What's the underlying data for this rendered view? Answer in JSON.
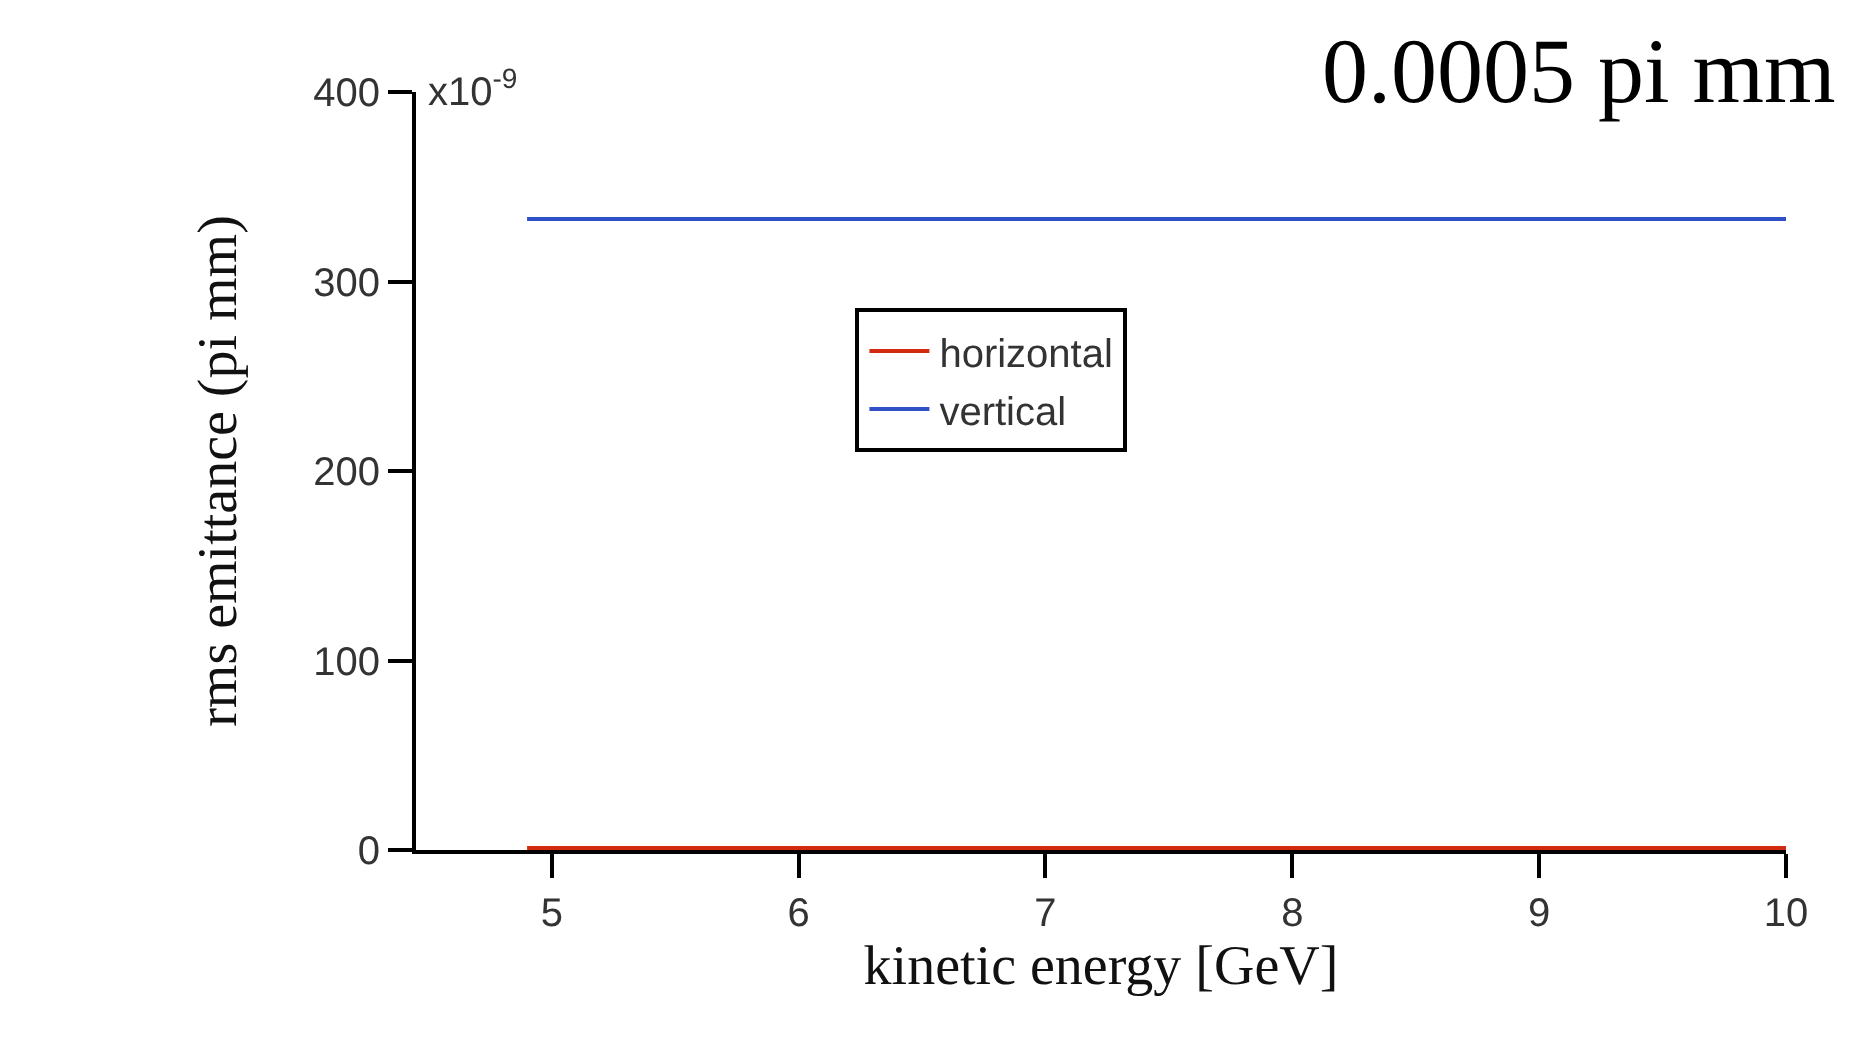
{
  "chart_data": {
    "type": "line",
    "annotations": [
      "0.0005 pi mm",
      "x10$^{-9}$"
    ],
    "xlabel": "kinetic energy [GeV]",
    "ylabel": "rms emittance (pi mm)",
    "x": [
      4.9,
      10
    ],
    "series": [
      {
        "name": "horizontal",
        "color": "#d42a10",
        "values": [
          1,
          1
        ]
      },
      {
        "name": "vertical",
        "color": "#3050c8",
        "values": [
          333,
          333
        ]
      }
    ],
    "xlim": [
      4.45,
      10
    ],
    "xticks": [
      5,
      6,
      7,
      8,
      9,
      10
    ],
    "ylim": [
      0,
      400
    ],
    "yticks": [
      0,
      100,
      200,
      300,
      400
    ],
    "grid": false,
    "legend": "center",
    "marker": "none",
    "line_style": "solid"
  }
}
